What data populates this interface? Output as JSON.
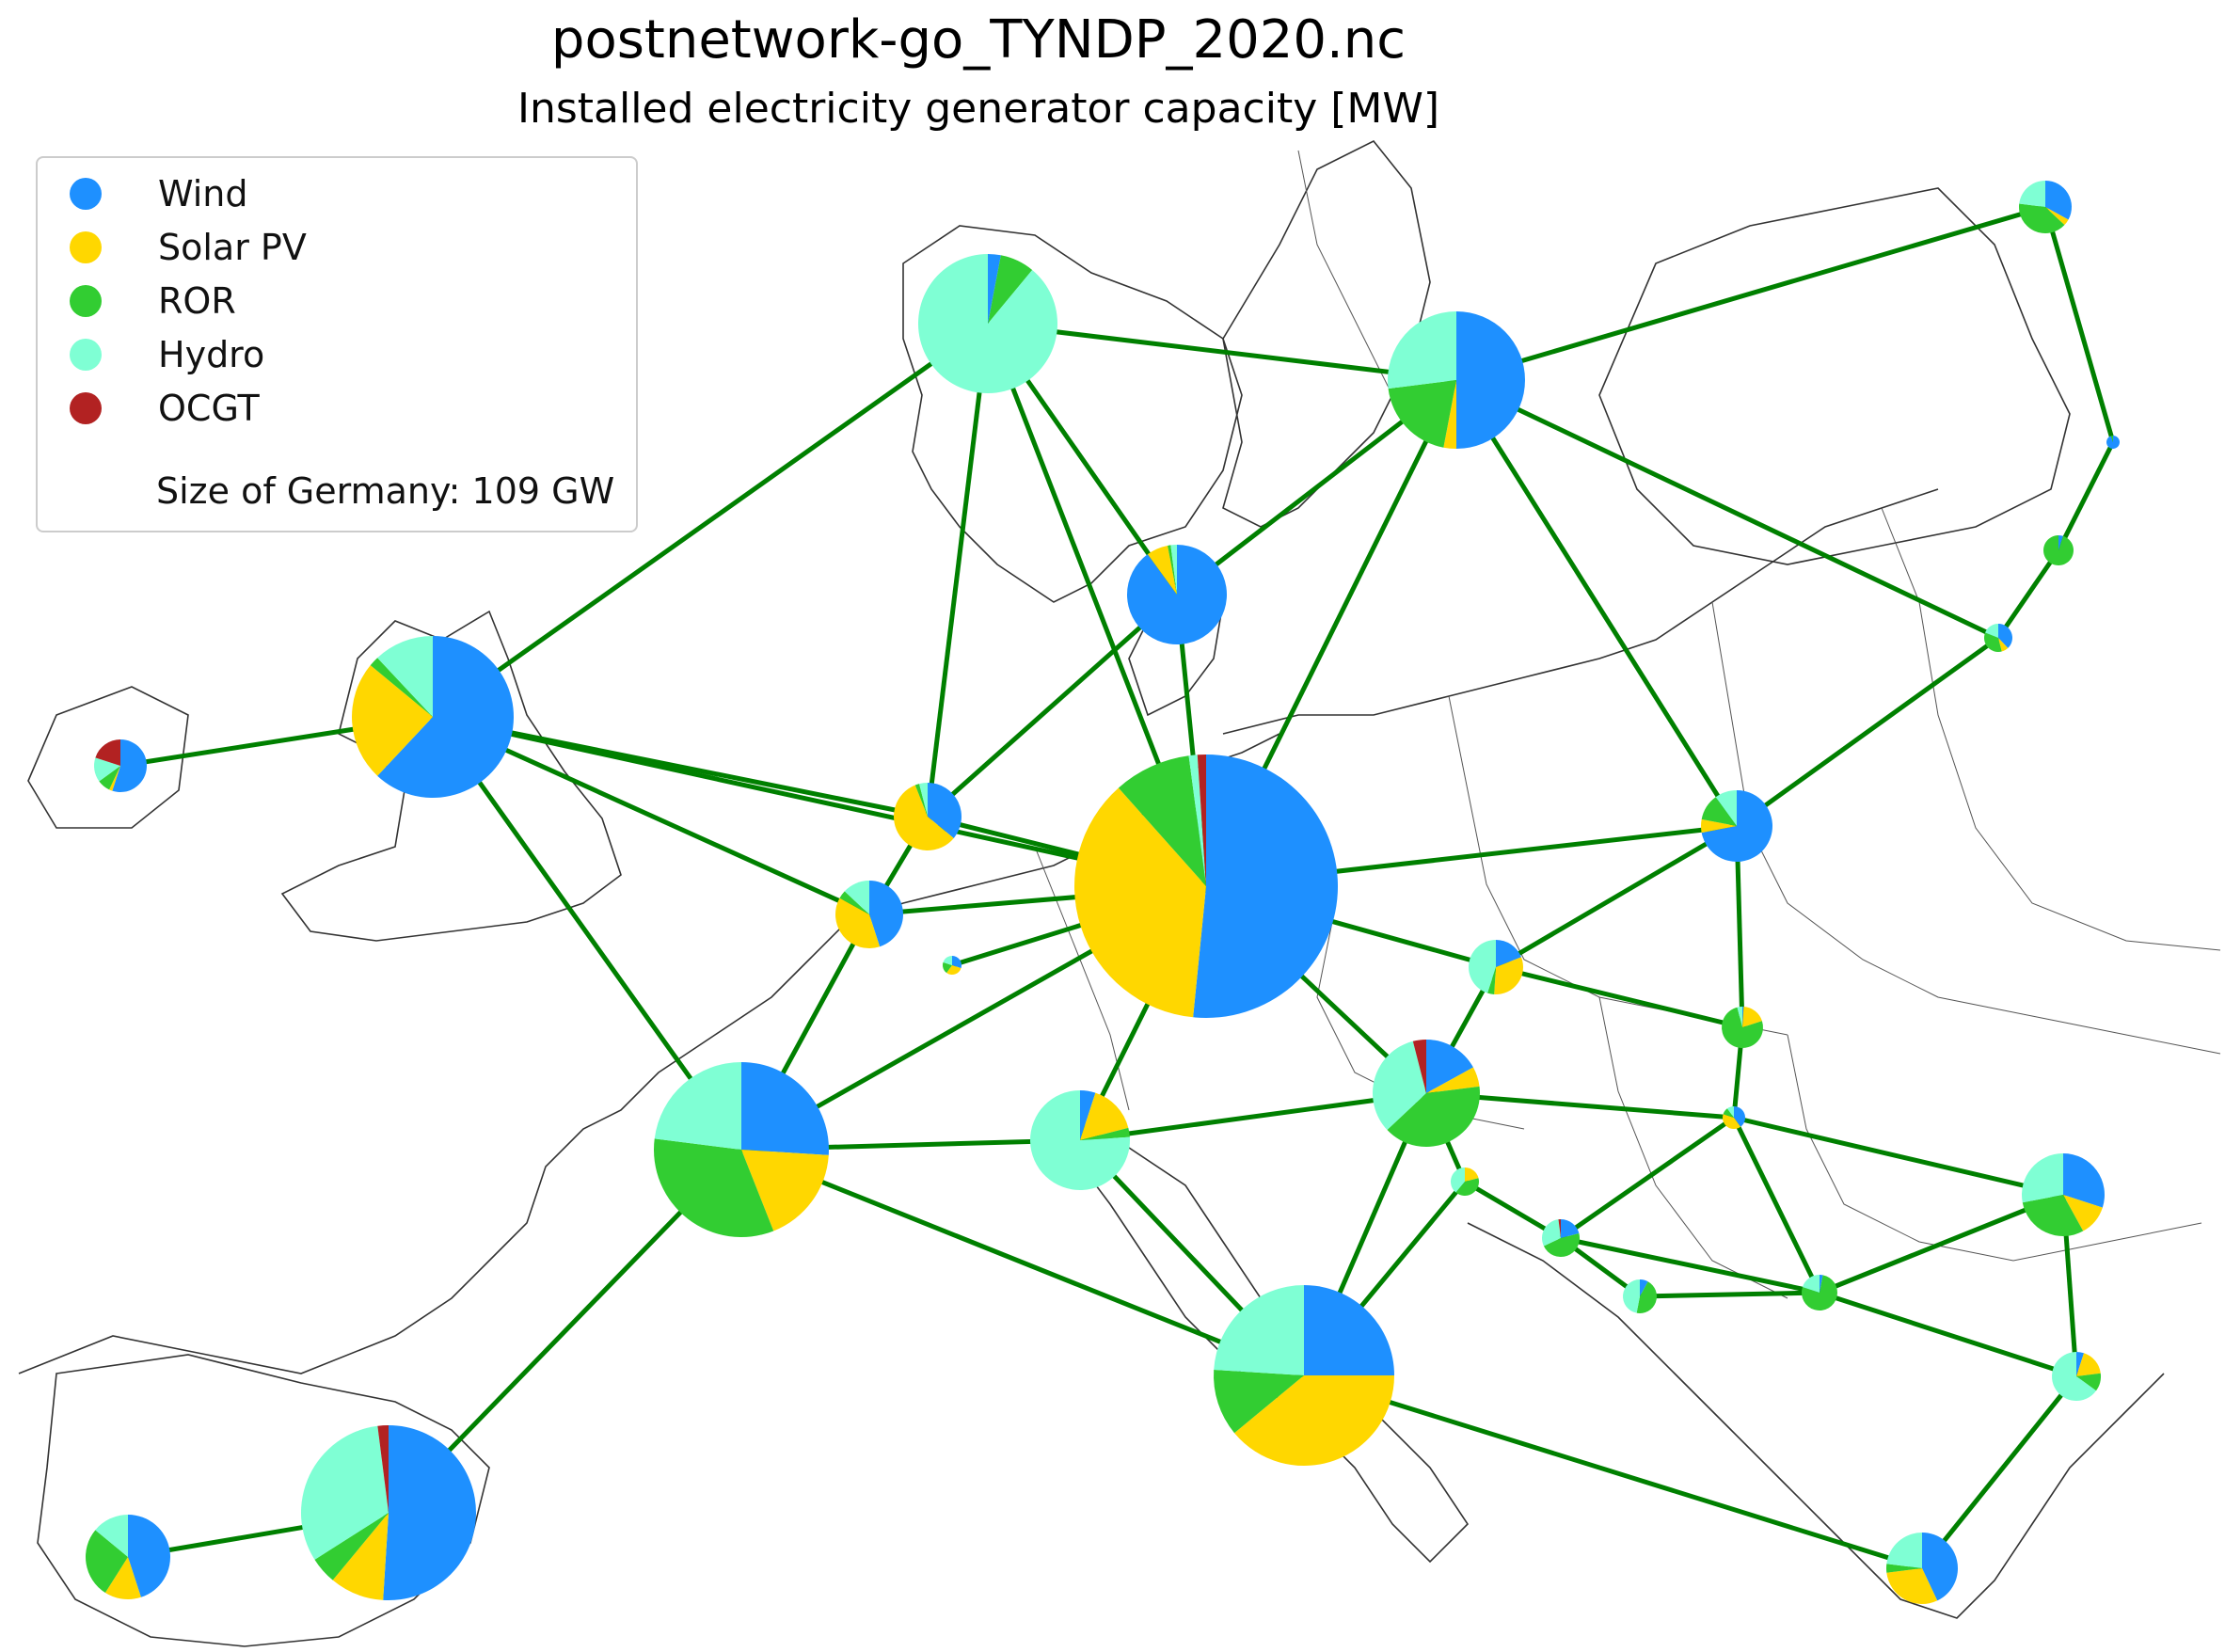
{
  "title": "postnetwork-go_TYNDP_2020.nc",
  "subtitle": "Installed electricity generator capacity [MW]",
  "legend": {
    "items": [
      {
        "label": "Wind",
        "color": "#1E90FF"
      },
      {
        "label": "Solar PV",
        "color": "#FFD700"
      },
      {
        "label": "ROR",
        "color": "#32CD32"
      },
      {
        "label": "Hydro",
        "color": "#7FFFD4"
      },
      {
        "label": "OCGT",
        "color": "#B22222"
      }
    ],
    "note": "Size of Germany: 109 GW"
  },
  "colors": {
    "line": "#008000",
    "coast": "#222222"
  }
}
